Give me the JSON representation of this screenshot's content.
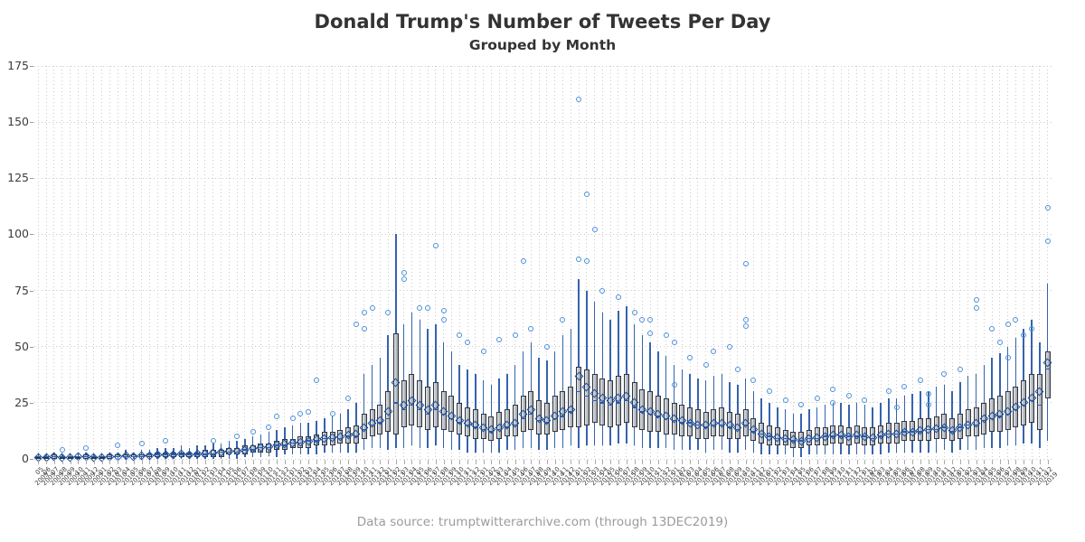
{
  "title": "Donald Trump's Number of Tweets Per Day",
  "subtitle": "Grouped by Month",
  "caption": "Data source: trumptwitterarchive.com (through 13DEC2019)",
  "colors": {
    "title_text": "#333333",
    "caption_text": "#9b9b9b",
    "box_fill_light": "#e2e4e8",
    "box_fill_dark": "#99a0a9",
    "box_edge": "#32353b",
    "whisker": "#3563ae",
    "median": "#2a5db0",
    "mean_marker": "#1c4f9e",
    "outlier_marker": "#4a90d9",
    "grid": "#c9c9c9",
    "tick": "#999999"
  },
  "chart_data": {
    "type": "box",
    "title": "Donald Trump's Number of Tweets Per Day",
    "subtitle": "Grouped by Month",
    "xlabel": "",
    "ylabel": "",
    "ylim": [
      0,
      175
    ],
    "yticks": [
      0,
      25,
      50,
      75,
      100,
      125,
      150,
      175
    ],
    "grid": "dotted both axes",
    "legend": "none",
    "x_label_format": "month over year, rotated 45 degrees",
    "marker_legend": {
      "box": "IQR",
      "diamond": "mean",
      "circle": "outlier",
      "line": "whisker range"
    },
    "months_fields": [
      "month",
      "year",
      "min",
      "q1",
      "median",
      "q3",
      "max",
      "mean",
      "outliers"
    ],
    "months": [
      [
        "05",
        "2009",
        0,
        0,
        1,
        1,
        2,
        0.7,
        []
      ],
      [
        "06",
        "2009",
        0,
        0,
        1,
        1,
        2,
        0.8,
        []
      ],
      [
        "07",
        "2009",
        0,
        0,
        1,
        2,
        3,
        1,
        []
      ],
      [
        "08",
        "2009",
        0,
        0,
        1,
        1,
        2,
        0.8,
        [
          4
        ]
      ],
      [
        "09",
        "2009",
        0,
        0,
        1,
        1,
        2,
        0.7,
        []
      ],
      [
        "10",
        "2009",
        0,
        0,
        1,
        1,
        3,
        0.9,
        []
      ],
      [
        "11",
        "2009",
        0,
        0,
        1,
        2,
        3,
        1.1,
        [
          5
        ]
      ],
      [
        "12",
        "2009",
        0,
        0,
        1,
        1,
        2,
        0.8,
        []
      ],
      [
        "01",
        "2010",
        0,
        0,
        1,
        1,
        2,
        0.6,
        []
      ],
      [
        "02",
        "2010",
        0,
        0,
        1,
        2,
        3,
        1,
        []
      ],
      [
        "03",
        "2010",
        0,
        1,
        1,
        2,
        3,
        1.2,
        [
          6
        ]
      ],
      [
        "04",
        "2010",
        0,
        1,
        1,
        2,
        4,
        1.3,
        []
      ],
      [
        "05",
        "2010",
        0,
        1,
        1,
        2,
        3,
        1.2,
        []
      ],
      [
        "06",
        "2010",
        0,
        1,
        1,
        2,
        4,
        1.4,
        [
          7
        ]
      ],
      [
        "07",
        "2010",
        0,
        1,
        2,
        2,
        4,
        1.6,
        []
      ],
      [
        "08",
        "2010",
        0,
        1,
        2,
        3,
        5,
        1.8,
        []
      ],
      [
        "09",
        "2010",
        0,
        1,
        2,
        3,
        5,
        1.9,
        [
          8
        ]
      ],
      [
        "10",
        "2010",
        0,
        1,
        2,
        3,
        5,
        2,
        []
      ],
      [
        "11",
        "2010",
        0,
        1,
        2,
        3,
        6,
        2.1,
        []
      ],
      [
        "12",
        "2010",
        0,
        1,
        2,
        3,
        5,
        2,
        []
      ],
      [
        "01",
        "2011",
        0,
        1,
        2,
        3,
        6,
        2.2,
        []
      ],
      [
        "02",
        "2011",
        0,
        1,
        2,
        4,
        6,
        2.4,
        []
      ],
      [
        "03",
        "2011",
        0,
        1,
        2,
        4,
        7,
        2.6,
        [
          8
        ]
      ],
      [
        "04",
        "2011",
        0,
        1,
        3,
        4,
        7,
        2.9,
        []
      ],
      [
        "05",
        "2011",
        0,
        2,
        3,
        5,
        8,
        3.3,
        []
      ],
      [
        "06",
        "2011",
        0,
        2,
        3,
        5,
        8,
        3.5,
        [
          10
        ]
      ],
      [
        "07",
        "2011",
        1,
        2,
        4,
        6,
        9,
        4,
        []
      ],
      [
        "08",
        "2011",
        1,
        3,
        4,
        6,
        10,
        4.5,
        [
          12
        ]
      ],
      [
        "09",
        "2011",
        1,
        3,
        5,
        7,
        11,
        5,
        []
      ],
      [
        "10",
        "2011",
        1,
        3,
        5,
        7,
        12,
        5.5,
        [
          14
        ]
      ],
      [
        "11",
        "2011",
        1,
        4,
        6,
        8,
        13,
        6.2,
        [
          19
        ]
      ],
      [
        "12",
        "2011",
        2,
        4,
        6,
        9,
        14,
        6.8,
        []
      ],
      [
        "01",
        "2012",
        2,
        5,
        7,
        9,
        15,
        7.2,
        [
          18
        ]
      ],
      [
        "02",
        "2012",
        2,
        5,
        7,
        10,
        16,
        7.6,
        [
          20
        ]
      ],
      [
        "03",
        "2012",
        2,
        5,
        8,
        10,
        16,
        8,
        [
          21
        ]
      ],
      [
        "04",
        "2012",
        2,
        6,
        8,
        11,
        17,
        8.5,
        [
          35
        ]
      ],
      [
        "05",
        "2012",
        3,
        6,
        9,
        12,
        18,
        9.2,
        []
      ],
      [
        "06",
        "2012",
        3,
        6,
        9,
        12,
        19,
        9.5,
        [
          20
        ]
      ],
      [
        "07",
        "2012",
        3,
        7,
        9,
        13,
        20,
        9.8,
        []
      ],
      [
        "08",
        "2012",
        3,
        7,
        10,
        14,
        22,
        10.5,
        [
          27
        ]
      ],
      [
        "09",
        "2012",
        3,
        7,
        10,
        15,
        25,
        11,
        [
          60
        ]
      ],
      [
        "10",
        "2012",
        4,
        9,
        13,
        20,
        38,
        14,
        [
          58,
          65
        ]
      ],
      [
        "11",
        "2012",
        5,
        10,
        15,
        22,
        42,
        16,
        [
          67
        ]
      ],
      [
        "12",
        "2012",
        5,
        11,
        16,
        24,
        45,
        17,
        []
      ],
      [
        "01",
        "2013",
        4,
        12,
        18,
        30,
        55,
        21,
        [
          65
        ]
      ],
      [
        "02",
        "2013",
        5,
        11,
        25,
        56,
        100,
        34,
        []
      ],
      [
        "03",
        "2013",
        5,
        14,
        22,
        35,
        60,
        24,
        [
          80,
          83
        ]
      ],
      [
        "04",
        "2013",
        6,
        15,
        24,
        38,
        65,
        26,
        []
      ],
      [
        "05",
        "2013",
        5,
        14,
        22,
        35,
        62,
        24,
        [
          67
        ]
      ],
      [
        "06",
        "2013",
        5,
        13,
        20,
        32,
        58,
        22,
        [
          67
        ]
      ],
      [
        "07",
        "2013",
        6,
        14,
        22,
        34,
        60,
        24,
        [
          95
        ]
      ],
      [
        "08",
        "2013",
        5,
        13,
        20,
        30,
        52,
        21,
        [
          62,
          66
        ]
      ],
      [
        "09",
        "2013",
        4,
        12,
        18,
        28,
        48,
        19,
        []
      ],
      [
        "10",
        "2013",
        4,
        11,
        16,
        25,
        42,
        17,
        [
          55
        ]
      ],
      [
        "11",
        "2013",
        3,
        10,
        15,
        23,
        40,
        16,
        [
          52
        ]
      ],
      [
        "12",
        "2013",
        3,
        9,
        14,
        22,
        38,
        15,
        []
      ],
      [
        "01",
        "2014",
        3,
        9,
        13,
        20,
        35,
        14,
        [
          48
        ]
      ],
      [
        "02",
        "2014",
        3,
        8,
        12,
        19,
        33,
        13,
        []
      ],
      [
        "03",
        "2014",
        3,
        9,
        13,
        21,
        36,
        14,
        [
          53
        ]
      ],
      [
        "04",
        "2014",
        4,
        10,
        14,
        22,
        38,
        15,
        []
      ],
      [
        "05",
        "2014",
        4,
        10,
        15,
        24,
        42,
        16,
        [
          55
        ]
      ],
      [
        "06",
        "2014",
        5,
        12,
        18,
        28,
        48,
        20,
        [
          88
        ]
      ],
      [
        "07",
        "2014",
        5,
        13,
        20,
        30,
        52,
        22,
        [
          58
        ]
      ],
      [
        "08",
        "2014",
        4,
        11,
        17,
        26,
        45,
        18,
        []
      ],
      [
        "09",
        "2014",
        4,
        11,
        16,
        25,
        44,
        17,
        [
          50
        ]
      ],
      [
        "10",
        "2014",
        5,
        12,
        18,
        28,
        48,
        19,
        []
      ],
      [
        "11",
        "2014",
        5,
        13,
        19,
        30,
        55,
        21,
        [
          62
        ]
      ],
      [
        "12",
        "2014",
        6,
        14,
        21,
        32,
        58,
        22,
        []
      ],
      [
        "01",
        "2015",
        5,
        14,
        30,
        41,
        80,
        37,
        [
          89,
          160
        ]
      ],
      [
        "02",
        "2015",
        6,
        15,
        28,
        40,
        75,
        32,
        [
          88,
          118
        ]
      ],
      [
        "03",
        "2015",
        6,
        16,
        26,
        38,
        70,
        29,
        [
          102
        ]
      ],
      [
        "04",
        "2015",
        6,
        15,
        25,
        36,
        65,
        27,
        [
          75
        ]
      ],
      [
        "05",
        "2015",
        6,
        14,
        24,
        35,
        62,
        26,
        []
      ],
      [
        "06",
        "2015",
        7,
        15,
        25,
        37,
        66,
        27,
        [
          72
        ]
      ],
      [
        "07",
        "2015",
        7,
        16,
        26,
        38,
        68,
        28,
        []
      ],
      [
        "08",
        "2015",
        6,
        14,
        23,
        34,
        60,
        25,
        [
          65
        ]
      ],
      [
        "09",
        "2015",
        5,
        13,
        21,
        31,
        55,
        22,
        [
          62
        ]
      ],
      [
        "10",
        "2015",
        5,
        12,
        20,
        30,
        52,
        21,
        [
          56,
          62
        ]
      ],
      [
        "11",
        "2015",
        5,
        12,
        19,
        28,
        48,
        20,
        []
      ],
      [
        "12",
        "2015",
        5,
        11,
        18,
        27,
        46,
        19,
        [
          55
        ]
      ],
      [
        "01",
        "2016",
        4,
        11,
        17,
        25,
        42,
        18,
        [
          33,
          52
        ]
      ],
      [
        "02",
        "2016",
        4,
        10,
        16,
        24,
        40,
        17,
        []
      ],
      [
        "03",
        "2016",
        4,
        10,
        16,
        23,
        38,
        16,
        [
          45
        ]
      ],
      [
        "04",
        "2016",
        4,
        9,
        15,
        22,
        36,
        15,
        []
      ],
      [
        "05",
        "2016",
        3,
        9,
        14,
        21,
        35,
        15,
        [
          42
        ]
      ],
      [
        "06",
        "2016",
        4,
        10,
        15,
        22,
        37,
        16,
        [
          48
        ]
      ],
      [
        "07",
        "2016",
        4,
        10,
        15,
        23,
        38,
        16,
        []
      ],
      [
        "08",
        "2016",
        3,
        9,
        14,
        21,
        34,
        15,
        [
          50
        ]
      ],
      [
        "09",
        "2016",
        3,
        9,
        13,
        20,
        33,
        14,
        [
          40
        ]
      ],
      [
        "10",
        "2016",
        4,
        10,
        15,
        22,
        36,
        16,
        [
          59,
          62,
          87
        ]
      ],
      [
        "11",
        "2016",
        3,
        8,
        12,
        18,
        30,
        13,
        [
          35
        ]
      ],
      [
        "12",
        "2016",
        2,
        7,
        11,
        16,
        27,
        11,
        []
      ],
      [
        "01",
        "2017",
        2,
        6,
        10,
        15,
        25,
        10,
        [
          30
        ]
      ],
      [
        "02",
        "2017",
        2,
        6,
        9,
        14,
        23,
        9.5,
        []
      ],
      [
        "03",
        "2017",
        2,
        6,
        9,
        13,
        22,
        9,
        [
          26
        ]
      ],
      [
        "04",
        "2017",
        1,
        5,
        8,
        12,
        20,
        8.5,
        []
      ],
      [
        "05",
        "2017",
        1,
        5,
        8,
        12,
        20,
        8,
        [
          24
        ]
      ],
      [
        "06",
        "2017",
        2,
        6,
        9,
        13,
        22,
        9,
        []
      ],
      [
        "07",
        "2017",
        2,
        6,
        9,
        14,
        23,
        9.5,
        [
          27
        ]
      ],
      [
        "08",
        "2017",
        2,
        6,
        10,
        14,
        24,
        10,
        []
      ],
      [
        "09",
        "2017",
        2,
        7,
        10,
        15,
        25,
        10.5,
        [
          25,
          31
        ]
      ],
      [
        "10",
        "2017",
        2,
        7,
        10,
        15,
        25,
        10.5,
        []
      ],
      [
        "11",
        "2017",
        2,
        6,
        10,
        14,
        24,
        10,
        [
          28
        ]
      ],
      [
        "12",
        "2017",
        2,
        7,
        10,
        15,
        25,
        10.5,
        []
      ],
      [
        "01",
        "2018",
        2,
        6,
        10,
        14,
        24,
        10,
        [
          26
        ]
      ],
      [
        "02",
        "2018",
        2,
        6,
        9,
        14,
        23,
        9.5,
        []
      ],
      [
        "03",
        "2018",
        2,
        7,
        10,
        15,
        25,
        10.5,
        []
      ],
      [
        "04",
        "2018",
        3,
        7,
        11,
        16,
        27,
        11,
        [
          30
        ]
      ],
      [
        "05",
        "2018",
        3,
        7,
        11,
        16,
        27,
        11,
        [
          23
        ]
      ],
      [
        "06",
        "2018",
        3,
        8,
        12,
        17,
        28,
        12,
        [
          32
        ]
      ],
      [
        "07",
        "2018",
        3,
        8,
        12,
        17,
        29,
        12,
        []
      ],
      [
        "08",
        "2018",
        3,
        8,
        12,
        18,
        30,
        12.5,
        [
          35
        ]
      ],
      [
        "09",
        "2018",
        3,
        8,
        13,
        18,
        30,
        13,
        [
          24,
          29
        ]
      ],
      [
        "10",
        "2018",
        3,
        9,
        13,
        19,
        32,
        13.5,
        []
      ],
      [
        "11",
        "2018",
        4,
        9,
        14,
        20,
        33,
        14,
        [
          38
        ]
      ],
      [
        "12",
        "2018",
        3,
        8,
        12,
        18,
        30,
        12.5,
        []
      ],
      [
        "01",
        "2019",
        4,
        9,
        14,
        20,
        34,
        14,
        [
          40
        ]
      ],
      [
        "02",
        "2019",
        4,
        10,
        15,
        22,
        37,
        15,
        []
      ],
      [
        "03",
        "2019",
        4,
        10,
        15,
        23,
        38,
        16,
        [
          67,
          71
        ]
      ],
      [
        "04",
        "2019",
        5,
        11,
        17,
        25,
        42,
        18,
        []
      ],
      [
        "05",
        "2019",
        5,
        12,
        18,
        27,
        45,
        19,
        [
          58
        ]
      ],
      [
        "06",
        "2019",
        5,
        12,
        19,
        28,
        47,
        20,
        [
          52
        ]
      ],
      [
        "07",
        "2019",
        6,
        13,
        20,
        30,
        50,
        21,
        [
          45,
          60
        ]
      ],
      [
        "08",
        "2019",
        6,
        14,
        22,
        32,
        54,
        23,
        [
          62
        ]
      ],
      [
        "09",
        "2019",
        7,
        15,
        24,
        35,
        58,
        25,
        [
          55
        ]
      ],
      [
        "10",
        "2019",
        7,
        16,
        26,
        38,
        62,
        27,
        [
          58
        ]
      ],
      [
        "11",
        "2019",
        5,
        13,
        24,
        38,
        52,
        30,
        []
      ],
      [
        "12",
        "2019",
        8,
        27,
        40,
        48,
        78,
        43,
        [
          97,
          112
        ]
      ]
    ]
  }
}
